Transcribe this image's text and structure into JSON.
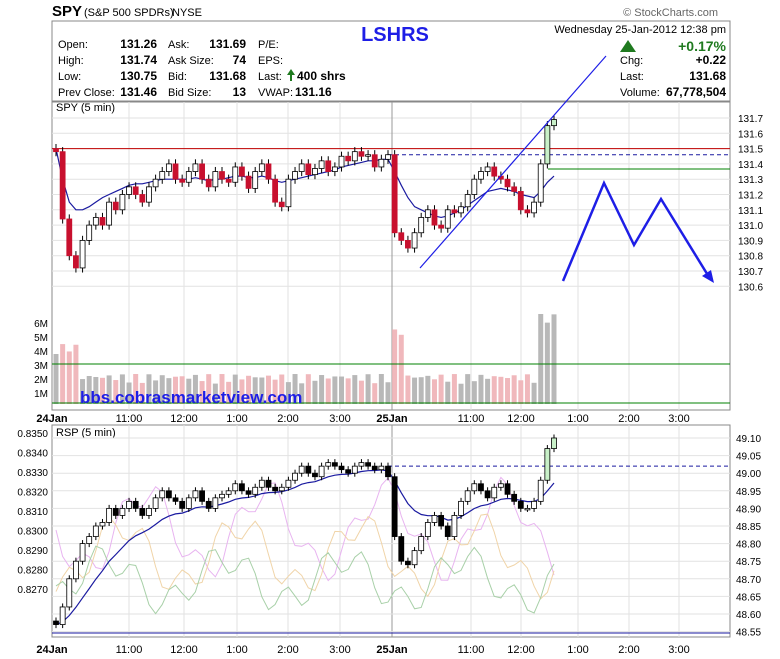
{
  "header": {
    "symbol": "SPY",
    "name": "(S&P 500 SPDRs)",
    "exchange": "NYSE",
    "brand": "© StockCharts.com",
    "date_line": "Wednesday   25-Jan-2012  12:38 pm",
    "change_pct": "+0.17%",
    "fields": [
      {
        "label": "Open:",
        "value": "131.26"
      },
      {
        "label": "High:",
        "value": "131.74"
      },
      {
        "label": "Low:",
        "value": "130.75"
      },
      {
        "label": "Prev Close:",
        "value": "131.46"
      },
      {
        "label": "Ask:",
        "value": "131.69"
      },
      {
        "label": "Ask Size:",
        "value": "74"
      },
      {
        "label": "Bid:",
        "value": "131.68"
      },
      {
        "label": "Bid Size:",
        "value": "13"
      },
      {
        "label": "P/E:",
        "value": ""
      },
      {
        "label": "EPS:",
        "value": ""
      },
      {
        "label": "Last:",
        "value": "400 shrs"
      },
      {
        "label": "VWAP:",
        "value": "131.16"
      },
      {
        "label": "Chg:",
        "value": "+0.22"
      },
      {
        "label": "Last:",
        "value": "131.68"
      },
      {
        "label": "Volume:",
        "value": "67,778,504"
      }
    ]
  },
  "annotations": {
    "title_overlay": "LSHRS",
    "watermark": "bbs.cobrasmarketview.com"
  },
  "colors": {
    "up_candle": "#ffffff",
    "down_candle": "#c8102e",
    "ma_line": "#1a1aa0",
    "red_line": "#c00000",
    "green_line": "#008000",
    "dashed_line": "#1a1aa0",
    "annotation_blue": "#1e1ee6",
    "volume_gray": "#b8b8b8",
    "volume_pink": "#f0b8bc",
    "up_arrow": "#1f7a1f"
  },
  "chart_data": [
    {
      "type": "candlestick",
      "title": "SPY (5 min)",
      "x_labels": [
        "24Jan",
        "11:00",
        "12:00",
        "1:00",
        "2:00",
        "3:00",
        "25Jan",
        "11:00",
        "12:00",
        "1:00",
        "2:00",
        "3:00"
      ],
      "ylim": [
        130.6,
        131.8
      ],
      "y_ticks": [
        "131.7",
        "131.6",
        "131.5",
        "131.4",
        "131.3",
        "131.2",
        "131.1",
        "131.0",
        "130.9",
        "130.8",
        "130.7",
        "130.6"
      ],
      "volume_labels": [
        "6M",
        "5M",
        "4M",
        "3M",
        "2M",
        "1M"
      ],
      "closes": [
        131.48,
        131.04,
        130.8,
        130.72,
        130.9,
        131.0,
        131.05,
        131.0,
        131.15,
        131.1,
        131.2,
        131.25,
        131.2,
        131.15,
        131.25,
        131.3,
        131.35,
        131.4,
        131.3,
        131.28,
        131.35,
        131.4,
        131.3,
        131.25,
        131.35,
        131.3,
        131.28,
        131.38,
        131.32,
        131.24,
        131.35,
        131.4,
        131.3,
        131.15,
        131.12,
        131.3,
        131.35,
        131.4,
        131.33,
        131.37,
        131.42,
        131.35,
        131.38,
        131.45,
        131.42,
        131.48,
        131.45,
        131.46,
        131.38,
        131.43,
        131.46,
        130.95,
        130.9,
        130.85,
        130.95,
        131.05,
        131.1,
        131.0,
        130.98,
        131.1,
        131.08,
        131.12,
        131.2,
        131.3,
        131.35,
        131.38,
        131.32,
        131.3,
        131.25,
        131.22,
        131.1,
        131.08,
        131.15,
        131.4,
        131.65,
        131.69
      ],
      "moving_average": [
        131.5,
        131.3,
        131.15,
        131.1,
        131.1,
        131.12,
        131.15,
        131.18,
        131.2,
        131.22,
        131.24,
        131.26,
        131.27,
        131.27,
        131.28,
        131.29,
        131.3,
        131.3,
        131.3,
        131.3,
        131.3,
        131.31,
        131.3,
        131.29,
        131.3,
        131.3,
        131.31,
        131.32,
        131.32,
        131.31,
        131.31,
        131.32,
        131.31,
        131.29,
        131.28,
        131.29,
        131.3,
        131.31,
        131.32,
        131.33,
        131.34,
        131.35,
        131.36,
        131.38,
        131.39,
        131.4,
        131.41,
        131.42,
        131.42,
        131.43,
        131.43,
        131.35,
        131.26,
        131.18,
        131.12,
        131.1,
        131.08,
        131.06,
        131.05,
        131.06,
        131.08,
        131.1,
        131.13,
        131.16,
        131.19,
        131.22,
        131.23,
        131.24,
        131.23,
        131.22,
        131.2,
        131.19,
        131.18,
        131.22,
        131.28,
        131.32
      ],
      "horizontal_lines": [
        {
          "value": 131.5,
          "style": "red-solid"
        },
        {
          "value": 131.46,
          "style": "blue-dashed"
        }
      ]
    },
    {
      "type": "line",
      "title": "RSP (5 min)",
      "x_labels": [
        "24Jan",
        "11:00",
        "12:00",
        "1:00",
        "2:00",
        "3:00",
        "25Jan",
        "11:00",
        "12:00",
        "1:00",
        "2:00",
        "3:00"
      ],
      "left_ticks": [
        "0.8350",
        "0.8340",
        "0.8330",
        "0.8320",
        "0.8310",
        "0.8300",
        "0.8290",
        "0.8280",
        "0.8270"
      ],
      "right_ticks": [
        "49.10",
        "49.05",
        "49.00",
        "48.95",
        "48.90",
        "48.85",
        "48.80",
        "48.75",
        "48.70",
        "48.65",
        "48.60",
        "48.55"
      ],
      "right_ylim": [
        48.55,
        49.12
      ],
      "closes": [
        48.57,
        48.62,
        48.7,
        48.75,
        48.8,
        48.82,
        48.85,
        48.86,
        48.9,
        48.88,
        48.9,
        48.92,
        48.9,
        48.88,
        48.9,
        48.93,
        48.95,
        48.93,
        48.92,
        48.9,
        48.93,
        48.95,
        48.92,
        48.9,
        48.93,
        48.94,
        48.95,
        48.97,
        48.95,
        48.94,
        48.96,
        48.98,
        48.96,
        48.95,
        48.96,
        48.98,
        49.0,
        49.02,
        49.0,
        48.99,
        49.02,
        49.03,
        49.02,
        49.01,
        49.0,
        49.02,
        49.03,
        49.02,
        49.01,
        49.02,
        48.99,
        48.82,
        48.75,
        48.74,
        48.78,
        48.82,
        48.86,
        48.88,
        48.85,
        48.82,
        48.88,
        48.92,
        48.95,
        48.97,
        48.95,
        48.93,
        48.96,
        48.97,
        48.94,
        48.92,
        48.9,
        48.9,
        48.92,
        48.98,
        49.07,
        49.1
      ]
    }
  ]
}
